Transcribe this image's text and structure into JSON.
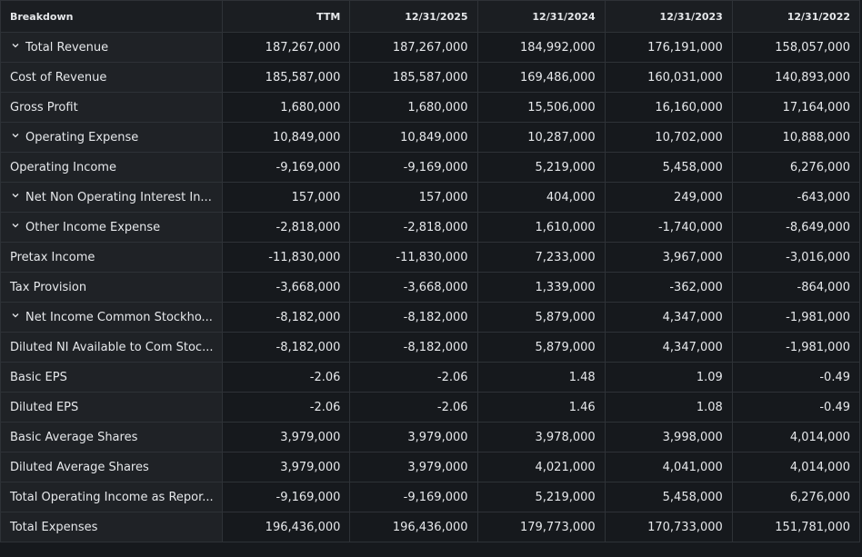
{
  "table": {
    "columns": [
      "Breakdown",
      "TTM",
      "12/31/2025",
      "12/31/2024",
      "12/31/2023",
      "12/31/2022"
    ],
    "rows": [
      {
        "label": "Total Revenue",
        "expandable": true,
        "values": [
          "187,267,000",
          "187,267,000",
          "184,992,000",
          "176,191,000",
          "158,057,000"
        ]
      },
      {
        "label": "Cost of Revenue",
        "expandable": false,
        "values": [
          "185,587,000",
          "185,587,000",
          "169,486,000",
          "160,031,000",
          "140,893,000"
        ]
      },
      {
        "label": "Gross Profit",
        "expandable": false,
        "values": [
          "1,680,000",
          "1,680,000",
          "15,506,000",
          "16,160,000",
          "17,164,000"
        ]
      },
      {
        "label": "Operating Expense",
        "expandable": true,
        "values": [
          "10,849,000",
          "10,849,000",
          "10,287,000",
          "10,702,000",
          "10,888,000"
        ]
      },
      {
        "label": "Operating Income",
        "expandable": false,
        "values": [
          "-9,169,000",
          "-9,169,000",
          "5,219,000",
          "5,458,000",
          "6,276,000"
        ]
      },
      {
        "label": "Net Non Operating Interest In...",
        "expandable": true,
        "values": [
          "157,000",
          "157,000",
          "404,000",
          "249,000",
          "-643,000"
        ]
      },
      {
        "label": "Other Income Expense",
        "expandable": true,
        "values": [
          "-2,818,000",
          "-2,818,000",
          "1,610,000",
          "-1,740,000",
          "-8,649,000"
        ]
      },
      {
        "label": "Pretax Income",
        "expandable": false,
        "values": [
          "-11,830,000",
          "-11,830,000",
          "7,233,000",
          "3,967,000",
          "-3,016,000"
        ]
      },
      {
        "label": "Tax Provision",
        "expandable": false,
        "values": [
          "-3,668,000",
          "-3,668,000",
          "1,339,000",
          "-362,000",
          "-864,000"
        ]
      },
      {
        "label": "Net Income Common Stockho...",
        "expandable": true,
        "values": [
          "-8,182,000",
          "-8,182,000",
          "5,879,000",
          "4,347,000",
          "-1,981,000"
        ]
      },
      {
        "label": "Diluted NI Available to Com Stoc...",
        "expandable": false,
        "values": [
          "-8,182,000",
          "-8,182,000",
          "5,879,000",
          "4,347,000",
          "-1,981,000"
        ]
      },
      {
        "label": "Basic EPS",
        "expandable": false,
        "values": [
          "-2.06",
          "-2.06",
          "1.48",
          "1.09",
          "-0.49"
        ]
      },
      {
        "label": "Diluted EPS",
        "expandable": false,
        "values": [
          "-2.06",
          "-2.06",
          "1.46",
          "1.08",
          "-0.49"
        ]
      },
      {
        "label": "Basic Average Shares",
        "expandable": false,
        "values": [
          "3,979,000",
          "3,979,000",
          "3,978,000",
          "3,998,000",
          "4,014,000"
        ]
      },
      {
        "label": "Diluted Average Shares",
        "expandable": false,
        "values": [
          "3,979,000",
          "3,979,000",
          "4,021,000",
          "4,041,000",
          "4,014,000"
        ]
      },
      {
        "label": "Total Operating Income as Repor...",
        "expandable": false,
        "values": [
          "-9,169,000",
          "-9,169,000",
          "5,219,000",
          "5,458,000",
          "6,276,000"
        ]
      },
      {
        "label": "Total Expenses",
        "expandable": false,
        "values": [
          "196,436,000",
          "196,436,000",
          "179,773,000",
          "170,733,000",
          "151,781,000"
        ]
      }
    ]
  }
}
